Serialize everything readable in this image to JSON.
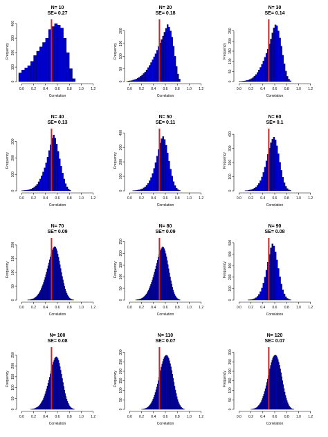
{
  "colors": {
    "bar_fill": "#0000cc",
    "bar_edge": "#000033",
    "mean_line": "#e02020"
  },
  "chart_data": [
    {
      "type": "bar",
      "title": "N= 10",
      "subtitle": "SE= 0.27",
      "xlabel": "Correlation",
      "ylabel": "Frequency",
      "xlim": [
        -0.05,
        1.25
      ],
      "xticks": [
        0.0,
        0.2,
        0.4,
        0.6,
        0.8,
        1.0,
        1.2
      ],
      "ylim": [
        0,
        420
      ],
      "yticks": [
        0,
        100,
        200,
        300,
        400
      ],
      "bin_start": -0.05,
      "bin_width": 0.05,
      "values": [
        60,
        80,
        95,
        110,
        140,
        180,
        210,
        240,
        270,
        300,
        360,
        380,
        400,
        390,
        370,
        300,
        200,
        90,
        20
      ],
      "mean_line": 0.5
    },
    {
      "type": "bar",
      "title": "N= 20",
      "subtitle": "SE= 0.18",
      "xlabel": "Correlation",
      "ylabel": "Frequency",
      "xlim": [
        -0.05,
        1.25
      ],
      "xticks": [
        0.0,
        0.2,
        0.4,
        0.6,
        0.8,
        1.0,
        1.2
      ],
      "ylim": [
        0,
        240
      ],
      "yticks": [
        0,
        50,
        100,
        150,
        200
      ],
      "bin_start": -0.05,
      "bin_width": 0.025,
      "values": [
        1,
        2,
        3,
        4,
        6,
        8,
        10,
        13,
        17,
        21,
        26,
        32,
        38,
        46,
        55,
        64,
        75,
        86,
        98,
        110,
        124,
        138,
        152,
        166,
        180,
        195,
        210,
        225,
        215,
        200,
        175,
        140,
        100,
        60,
        30,
        10
      ],
      "mean_line": 0.5
    },
    {
      "type": "bar",
      "title": "N= 30",
      "subtitle": "SE= 0.14",
      "xlabel": "Correlation",
      "ylabel": "Frequency",
      "xlim": [
        -0.05,
        1.25
      ],
      "xticks": [
        0.0,
        0.2,
        0.4,
        0.6,
        0.8,
        1.0,
        1.2
      ],
      "ylim": [
        0,
        300
      ],
      "yticks": [
        0,
        50,
        100,
        150,
        200,
        250
      ],
      "bin_start": 0.0,
      "bin_width": 0.025,
      "values": [
        1,
        1,
        2,
        3,
        4,
        6,
        8,
        11,
        15,
        20,
        27,
        35,
        45,
        57,
        70,
        85,
        102,
        120,
        140,
        160,
        185,
        210,
        240,
        265,
        280,
        275,
        250,
        215,
        175,
        130,
        88,
        52,
        26,
        12,
        4
      ],
      "mean_line": 0.5
    },
    {
      "type": "bar",
      "title": "N= 40",
      "subtitle": "SE= 0.13",
      "xlabel": "Correlation",
      "ylabel": "Frequency",
      "xlim": [
        -0.05,
        1.25
      ],
      "xticks": [
        0.0,
        0.2,
        0.4,
        0.6,
        0.8,
        1.0,
        1.2
      ],
      "ylim": [
        0,
        370
      ],
      "yticks": [
        0,
        100,
        200,
        300
      ],
      "bin_start": 0.0,
      "bin_width": 0.025,
      "values": [
        1,
        2,
        3,
        4,
        6,
        8,
        12,
        16,
        22,
        30,
        40,
        55,
        72,
        92,
        115,
        140,
        170,
        205,
        245,
        280,
        320,
        340,
        320,
        285,
        240,
        195,
        150,
        108,
        72,
        44,
        24,
        11,
        4
      ],
      "mean_line": 0.5
    },
    {
      "type": "bar",
      "title": "N= 50",
      "subtitle": "SE= 0.11",
      "xlabel": "Correlation",
      "ylabel": "Frequency",
      "xlim": [
        -0.05,
        1.25
      ],
      "xticks": [
        0.0,
        0.2,
        0.4,
        0.6,
        0.8,
        1.0,
        1.2
      ],
      "ylim": [
        0,
        420
      ],
      "yticks": [
        0,
        100,
        200,
        300,
        400
      ],
      "bin_start": 0.05,
      "bin_width": 0.025,
      "values": [
        1,
        2,
        3,
        5,
        7,
        10,
        14,
        20,
        28,
        38,
        52,
        70,
        92,
        120,
        155,
        195,
        240,
        285,
        330,
        360,
        375,
        355,
        315,
        262,
        205,
        150,
        102,
        64,
        36,
        18,
        8,
        3
      ],
      "mean_line": 0.5
    },
    {
      "type": "bar",
      "title": "N= 60",
      "subtitle": "SE= 0.1",
      "xlabel": "Correlation",
      "ylabel": "Frequency",
      "xlim": [
        -0.05,
        1.25
      ],
      "xticks": [
        0.0,
        0.2,
        0.4,
        0.6,
        0.8,
        1.0,
        1.2
      ],
      "ylim": [
        0,
        430
      ],
      "yticks": [
        0,
        100,
        200,
        300,
        400
      ],
      "bin_start": 0.1,
      "bin_width": 0.025,
      "values": [
        1,
        2,
        4,
        6,
        9,
        13,
        19,
        27,
        38,
        52,
        72,
        98,
        130,
        168,
        212,
        258,
        302,
        340,
        365,
        380,
        360,
        318,
        262,
        202,
        145,
        96,
        58,
        32,
        16,
        7,
        3
      ],
      "mean_line": 0.5
    },
    {
      "type": "bar",
      "title": "N= 70",
      "subtitle": "SE= 0.09",
      "xlabel": "Correlation",
      "ylabel": "Frequency",
      "xlim": [
        -0.05,
        1.25
      ],
      "xticks": [
        0.0,
        0.2,
        0.4,
        0.6,
        0.8,
        1.0,
        1.2
      ],
      "ylim": [
        0,
        220
      ],
      "yticks": [
        0,
        50,
        100,
        150,
        200
      ],
      "bin_start": 0.1,
      "bin_width": 0.0125,
      "values": [
        1,
        1,
        1,
        2,
        2,
        3,
        4,
        5,
        6,
        8,
        10,
        12,
        15,
        18,
        22,
        26,
        31,
        36,
        42,
        49,
        56,
        64,
        73,
        82,
        92,
        102,
        113,
        124,
        135,
        146,
        156,
        166,
        175,
        182,
        188,
        192,
        194,
        192,
        186,
        178,
        167,
        155,
        142,
        128,
        114,
        100,
        86,
        73,
        61,
        50,
        40,
        32,
        25,
        19,
        14,
        10,
        7,
        5,
        3,
        2,
        1,
        1
      ],
      "mean_line": 0.5
    },
    {
      "type": "bar",
      "title": "N= 80",
      "subtitle": "SE= 0.09",
      "xlabel": "Correlation",
      "ylabel": "Frequency",
      "xlim": [
        -0.05,
        1.25
      ],
      "xticks": [
        0.0,
        0.2,
        0.4,
        0.6,
        0.8,
        1.0,
        1.2
      ],
      "ylim": [
        0,
        260
      ],
      "yticks": [
        0,
        50,
        100,
        150,
        200,
        250
      ],
      "bin_start": 0.1,
      "bin_width": 0.0125,
      "values": [
        1,
        1,
        2,
        2,
        3,
        4,
        5,
        6,
        8,
        10,
        12,
        15,
        18,
        22,
        26,
        31,
        37,
        43,
        50,
        58,
        67,
        76,
        86,
        97,
        108,
        120,
        132,
        145,
        158,
        171,
        183,
        194,
        204,
        213,
        220,
        225,
        228,
        226,
        220,
        211,
        199,
        185,
        169,
        152,
        134,
        116,
        99,
        83,
        68,
        55,
        43,
        33,
        25,
        18,
        13,
        9,
        6,
        4,
        2,
        1
      ],
      "mean_line": 0.5
    },
    {
      "type": "bar",
      "title": "N= 90",
      "subtitle": "SE= 0.08",
      "xlabel": "Correlation",
      "ylabel": "Frequency",
      "xlim": [
        -0.05,
        1.25
      ],
      "xticks": [
        0.0,
        0.2,
        0.4,
        0.6,
        0.8,
        1.0,
        1.2
      ],
      "ylim": [
        0,
        530
      ],
      "yticks": [
        0,
        100,
        200,
        300,
        400,
        500
      ],
      "bin_start": 0.15,
      "bin_width": 0.025,
      "values": [
        2,
        3,
        5,
        8,
        13,
        21,
        33,
        50,
        74,
        106,
        148,
        200,
        262,
        330,
        398,
        455,
        490,
        470,
        420,
        350,
        275,
        203,
        140,
        90,
        54,
        30,
        15,
        7,
        3
      ],
      "mean_line": 0.5
    },
    {
      "type": "bar",
      "title": "N= 100",
      "subtitle": "SE= 0.08",
      "xlabel": "Correlation",
      "ylabel": "Frequency",
      "xlim": [
        -0.05,
        1.25
      ],
      "xticks": [
        0.0,
        0.2,
        0.4,
        0.6,
        0.8,
        1.0,
        1.2
      ],
      "ylim": [
        0,
        280
      ],
      "yticks": [
        0,
        50,
        100,
        150,
        200,
        250
      ],
      "bin_start": 0.15,
      "bin_width": 0.0125,
      "values": [
        1,
        1,
        2,
        2,
        3,
        4,
        5,
        7,
        9,
        11,
        14,
        17,
        21,
        26,
        31,
        37,
        44,
        52,
        61,
        71,
        82,
        94,
        107,
        120,
        134,
        148,
        163,
        178,
        192,
        205,
        217,
        227,
        235,
        240,
        242,
        240,
        234,
        225,
        212,
        197,
        180,
        162,
        143,
        124,
        106,
        89,
        73,
        59,
        47,
        37,
        28,
        21,
        15,
        10,
        7,
        5,
        3,
        2,
        1
      ],
      "mean_line": 0.5
    },
    {
      "type": "bar",
      "title": "N= 110",
      "subtitle": "SE= 0.07",
      "xlabel": "Correlation",
      "ylabel": "Frequency",
      "xlim": [
        -0.05,
        1.25
      ],
      "xticks": [
        0.0,
        0.2,
        0.4,
        0.6,
        0.8,
        1.0,
        1.2
      ],
      "ylim": [
        0,
        320
      ],
      "yticks": [
        0,
        50,
        100,
        150,
        200,
        250,
        300
      ],
      "bin_start": 0.2,
      "bin_width": 0.0125,
      "values": [
        1,
        1,
        2,
        3,
        4,
        5,
        7,
        9,
        12,
        15,
        19,
        24,
        30,
        37,
        45,
        54,
        64,
        76,
        89,
        103,
        118,
        134,
        151,
        169,
        187,
        205,
        222,
        238,
        252,
        264,
        273,
        280,
        284,
        285,
        283,
        277,
        268,
        256,
        241,
        224,
        205,
        185,
        164,
        143,
        122,
        102,
        84,
        67,
        52,
        40,
        30,
        22,
        15,
        10,
        7,
        4,
        2,
        1
      ],
      "mean_line": 0.5
    },
    {
      "type": "bar",
      "title": "N= 120",
      "subtitle": "SE= 0.07",
      "xlabel": "Correlation",
      "ylabel": "Frequency",
      "xlim": [
        -0.05,
        1.25
      ],
      "xticks": [
        0.0,
        0.2,
        0.4,
        0.6,
        0.8,
        1.0,
        1.2
      ],
      "ylim": [
        0,
        320
      ],
      "yticks": [
        0,
        50,
        100,
        150,
        200,
        250,
        300
      ],
      "bin_start": 0.2,
      "bin_width": 0.0125,
      "values": [
        1,
        1,
        2,
        3,
        4,
        5,
        7,
        9,
        12,
        16,
        20,
        25,
        31,
        38,
        47,
        57,
        68,
        80,
        94,
        109,
        125,
        142,
        160,
        178,
        196,
        214,
        231,
        246,
        259,
        270,
        278,
        283,
        286,
        285,
        281,
        273,
        262,
        248,
        232,
        213,
        193,
        172,
        151,
        130,
        110,
        91,
        74,
        59,
        46,
        35,
        26,
        18,
        12,
        8,
        5,
        3,
        2,
        1
      ],
      "mean_line": 0.5
    }
  ]
}
